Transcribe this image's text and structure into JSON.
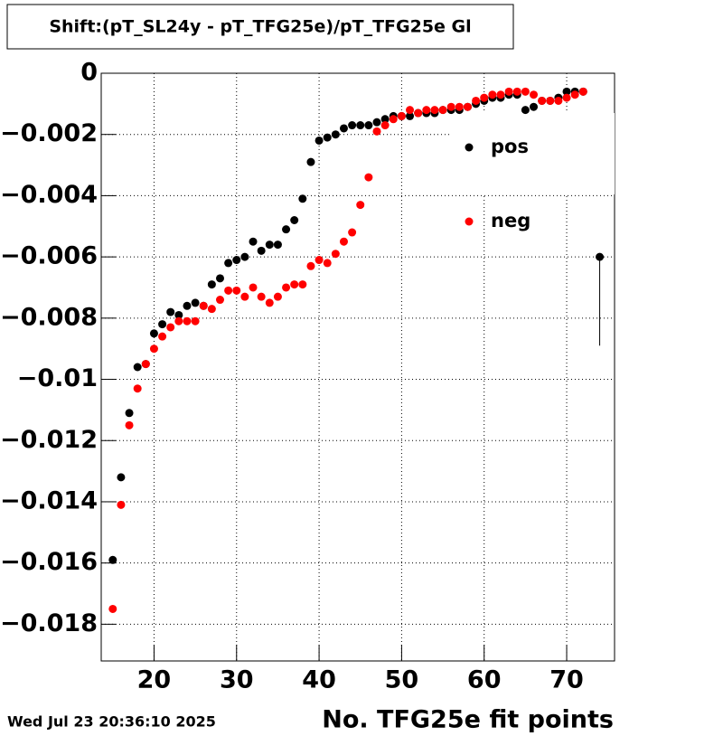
{
  "chart_data": {
    "type": "scatter",
    "title": "Shift:(pT_SL24y - pT_TFG25e)/pT_TFG25e Gl",
    "x_label": "No. TFG25e fit points",
    "footer": "Wed Jul 23 20:36:10 2025",
    "xlim": [
      13.6,
      75.8
    ],
    "ylim": [
      -0.0192,
      0
    ],
    "xticks": [
      20,
      30,
      40,
      50,
      60,
      70
    ],
    "yticks": [
      0,
      {
        "value": -0.002,
        "label": "−0.002"
      },
      {
        "value": -0.004,
        "label": "−0.004"
      },
      {
        "value": -0.006,
        "label": "−0.006"
      },
      {
        "value": -0.008,
        "label": "−0.008"
      },
      {
        "value": -0.01,
        "label": "−0.01"
      },
      {
        "value": -0.012,
        "label": "−0.012"
      },
      {
        "value": -0.014,
        "label": "−0.014"
      },
      {
        "value": -0.016,
        "label": "−0.016"
      },
      {
        "value": -0.018,
        "label": "−0.018"
      }
    ],
    "grid": true,
    "legend": "upper-right",
    "series": [
      {
        "name": "pos",
        "color": "#000000",
        "x": [
          15,
          16,
          17,
          18,
          19,
          20,
          21,
          22,
          23,
          24,
          25,
          26,
          27,
          28,
          29,
          30,
          31,
          32,
          33,
          34,
          35,
          36,
          37,
          38,
          39,
          40,
          41,
          42,
          43,
          44,
          45,
          46,
          47,
          48,
          49,
          50,
          51,
          52,
          53,
          54,
          55,
          56,
          57,
          58,
          59,
          60,
          61,
          62,
          63,
          64,
          65,
          66,
          67,
          68,
          69,
          70,
          71,
          72,
          74
        ],
        "values": [
          -0.0159,
          -0.0132,
          -0.0111,
          -0.0096,
          -0.0095,
          -0.0085,
          -0.0082,
          -0.0078,
          -0.0079,
          -0.0076,
          -0.0075,
          -0.0076,
          -0.0069,
          -0.0067,
          -0.0062,
          -0.0061,
          -0.006,
          -0.0055,
          -0.0058,
          -0.0056,
          -0.0056,
          -0.0051,
          -0.0048,
          -0.0041,
          -0.0029,
          -0.0022,
          -0.0021,
          -0.002,
          -0.0018,
          -0.0017,
          -0.0017,
          -0.0017,
          -0.0016,
          -0.0015,
          -0.0014,
          -0.0014,
          -0.0014,
          -0.0013,
          -0.0013,
          -0.0013,
          -0.0012,
          -0.0012,
          -0.0012,
          -0.0011,
          -0.001,
          -0.0009,
          -0.0008,
          -0.0008,
          -0.0007,
          -0.0007,
          -0.0012,
          -0.0011,
          -0.0009,
          -0.0009,
          -0.0008,
          -0.0006,
          -0.0006,
          -0.0006,
          -0.006
        ],
        "errors": [
          null,
          null,
          null,
          null,
          null,
          null,
          null,
          null,
          null,
          null,
          null,
          null,
          null,
          null,
          null,
          null,
          null,
          null,
          null,
          null,
          null,
          null,
          null,
          null,
          null,
          null,
          null,
          null,
          null,
          null,
          null,
          null,
          null,
          null,
          null,
          null,
          null,
          null,
          null,
          null,
          null,
          null,
          null,
          null,
          null,
          null,
          null,
          null,
          null,
          null,
          null,
          null,
          null,
          null,
          null,
          null,
          null,
          null,
          0.0029
        ]
      },
      {
        "name": "neg",
        "color": "#ff0000",
        "x": [
          15,
          16,
          17,
          18,
          19,
          20,
          21,
          22,
          23,
          24,
          25,
          26,
          27,
          28,
          29,
          30,
          31,
          32,
          33,
          34,
          35,
          36,
          37,
          38,
          39,
          40,
          41,
          42,
          43,
          44,
          45,
          46,
          47,
          48,
          49,
          50,
          51,
          52,
          53,
          54,
          55,
          56,
          57,
          58,
          59,
          60,
          61,
          62,
          63,
          64,
          65,
          66,
          67,
          68,
          69,
          70,
          71,
          72
        ],
        "values": [
          -0.0175,
          -0.0141,
          -0.0115,
          -0.0103,
          -0.0095,
          -0.009,
          -0.0086,
          -0.0083,
          -0.0081,
          -0.0081,
          -0.0081,
          -0.0076,
          -0.0077,
          -0.0074,
          -0.0071,
          -0.0071,
          -0.0073,
          -0.007,
          -0.0073,
          -0.0075,
          -0.0073,
          -0.007,
          -0.0069,
          -0.0069,
          -0.0063,
          -0.0061,
          -0.0062,
          -0.0059,
          -0.0055,
          -0.0052,
          -0.0043,
          -0.0034,
          -0.0019,
          -0.0017,
          -0.0015,
          -0.0014,
          -0.0012,
          -0.0013,
          -0.0012,
          -0.0012,
          -0.0012,
          -0.0011,
          -0.0011,
          -0.0011,
          -0.0009,
          -0.0008,
          -0.0007,
          -0.0007,
          -0.0006,
          -0.0006,
          -0.0006,
          -0.0007,
          -0.0009,
          -0.0009,
          -0.0009,
          -0.0008,
          -0.0007,
          -0.0006
        ]
      }
    ]
  }
}
